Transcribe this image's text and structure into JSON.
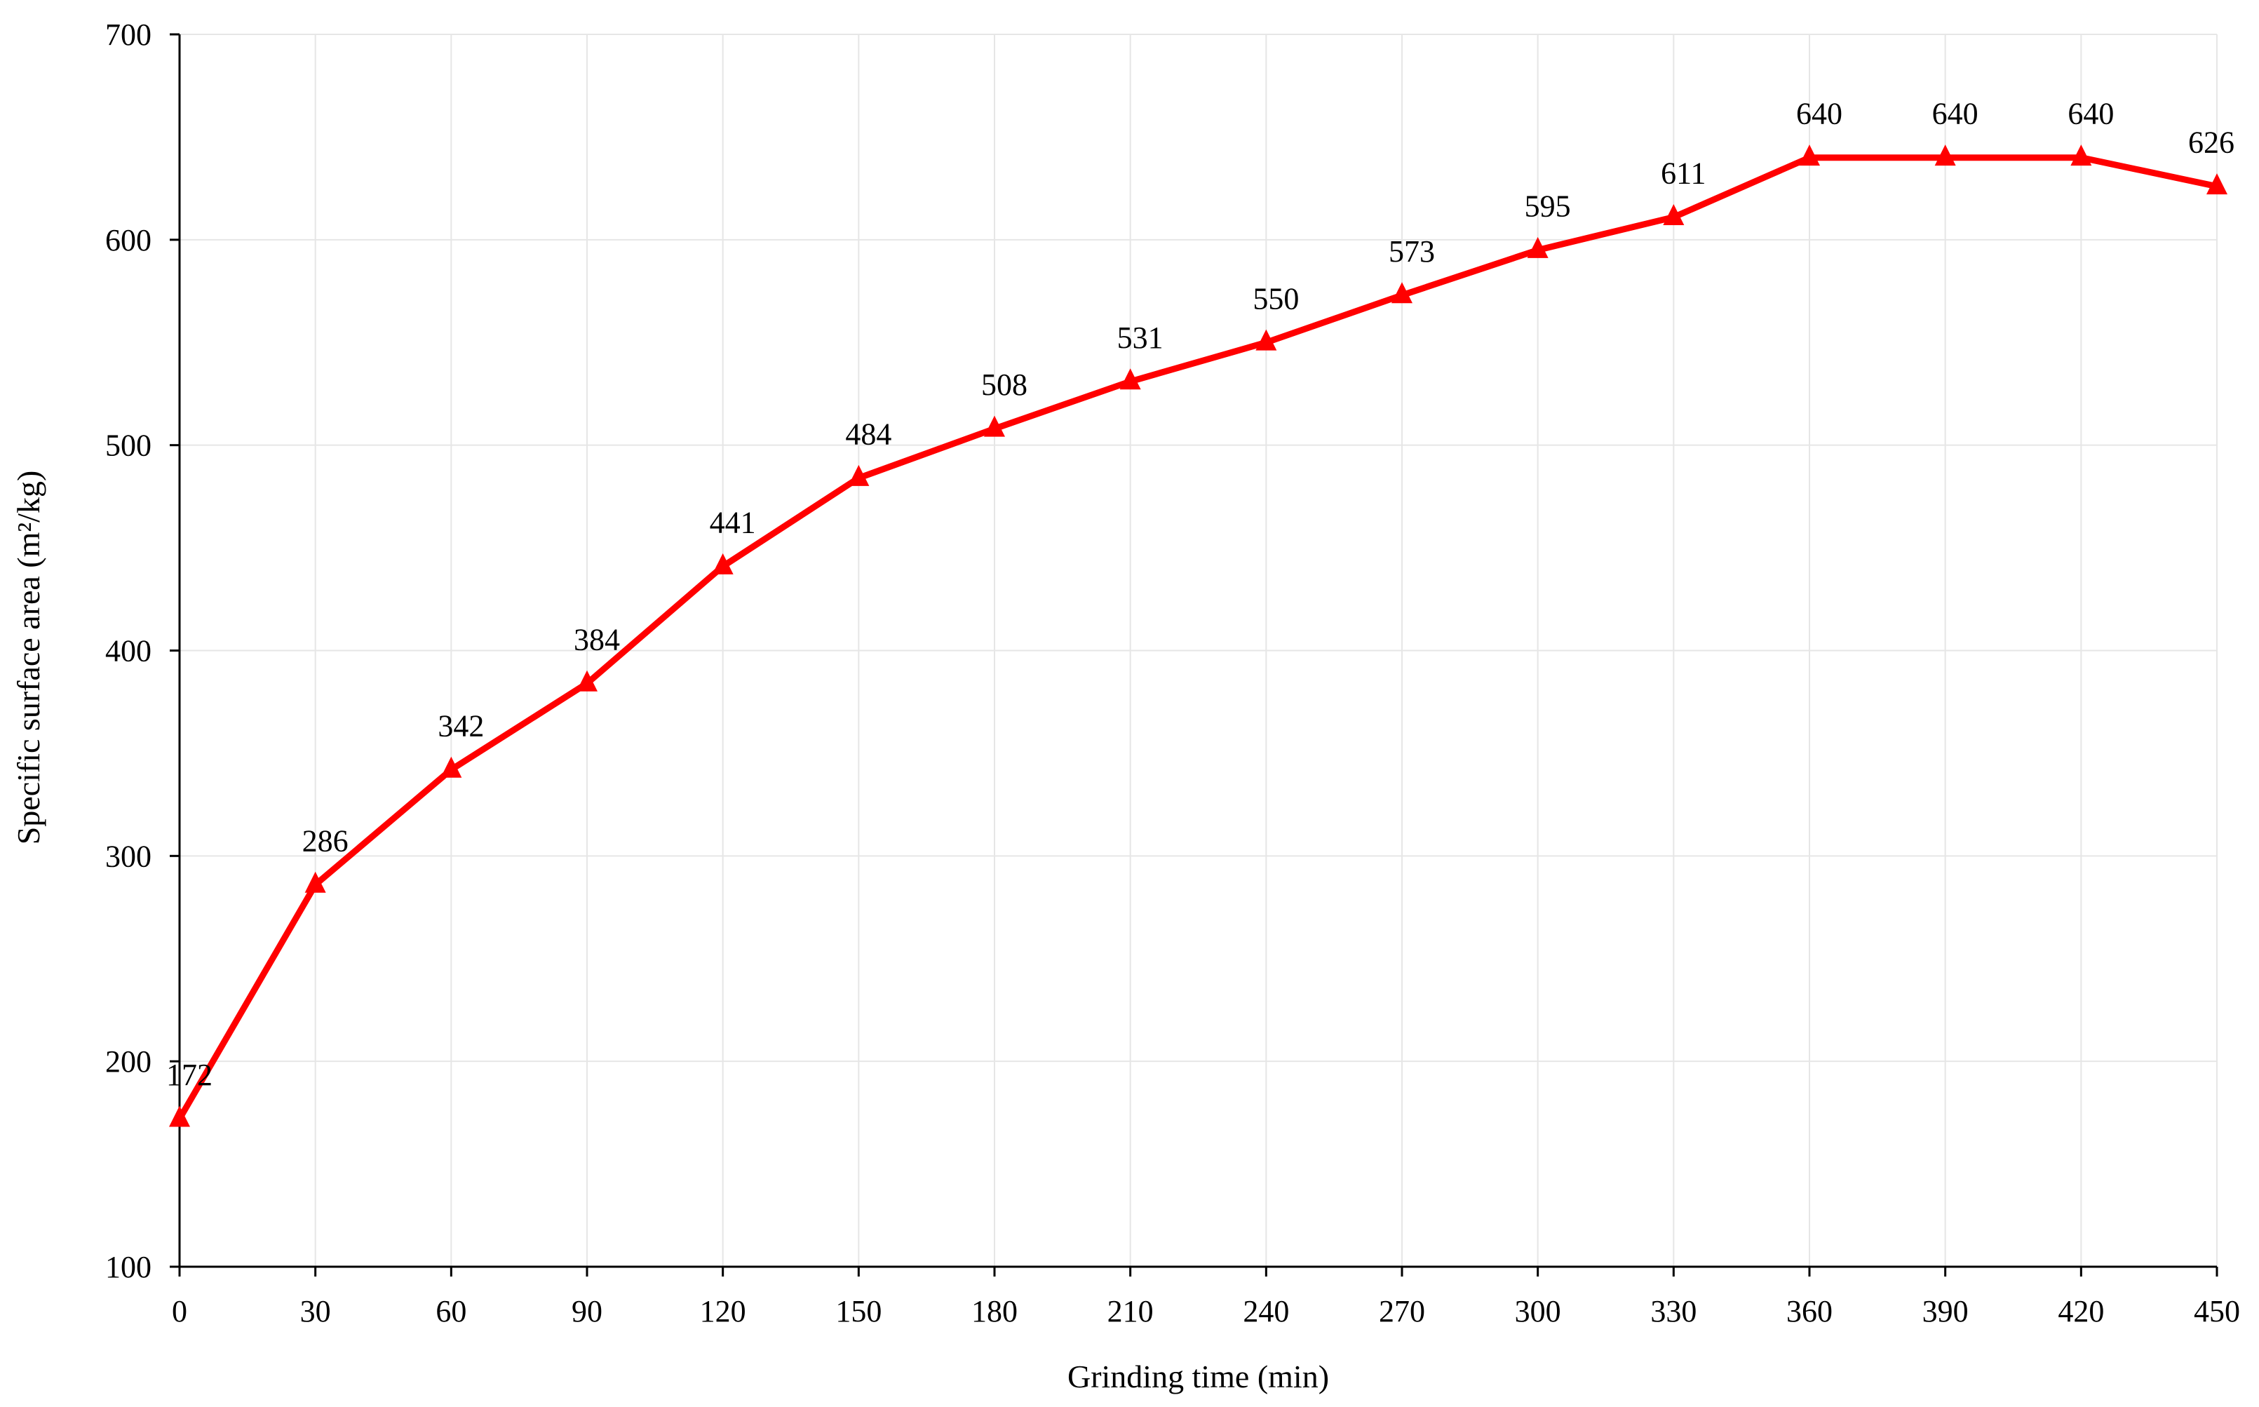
{
  "chart_data": {
    "type": "line",
    "xlabel": "Grinding time (min)",
    "ylabel": "Specific surface area (m²/kg)",
    "x": [
      0,
      30,
      60,
      90,
      120,
      150,
      180,
      210,
      240,
      270,
      300,
      330,
      360,
      390,
      420,
      450
    ],
    "series": [
      {
        "values": [
          172,
          286,
          342,
          384,
          441,
          484,
          508,
          531,
          550,
          573,
          595,
          611,
          640,
          640,
          640,
          626
        ],
        "color": "#ff0000",
        "marker": "triangle",
        "data_labels": [
          "172",
          "286",
          "342",
          "384",
          "441",
          "484",
          "508",
          "531",
          "550",
          "573",
          "595",
          "611",
          "640",
          "640",
          "640",
          "626"
        ]
      }
    ],
    "xlim": [
      0,
      450
    ],
    "ylim": [
      100,
      700
    ],
    "xticks": [
      0,
      30,
      60,
      90,
      120,
      150,
      180,
      210,
      240,
      270,
      300,
      330,
      360,
      390,
      420,
      450
    ],
    "yticks": [
      100,
      200,
      300,
      400,
      500,
      600,
      700
    ],
    "xtick_labels": [
      "0",
      "30",
      "60",
      "90",
      "120",
      "150",
      "180",
      "210",
      "240",
      "270",
      "300",
      "330",
      "360",
      "390",
      "420",
      "450"
    ],
    "ytick_labels": [
      "100",
      "200",
      "300",
      "400",
      "500",
      "600",
      "700"
    ],
    "grid": true,
    "legend": "none"
  }
}
